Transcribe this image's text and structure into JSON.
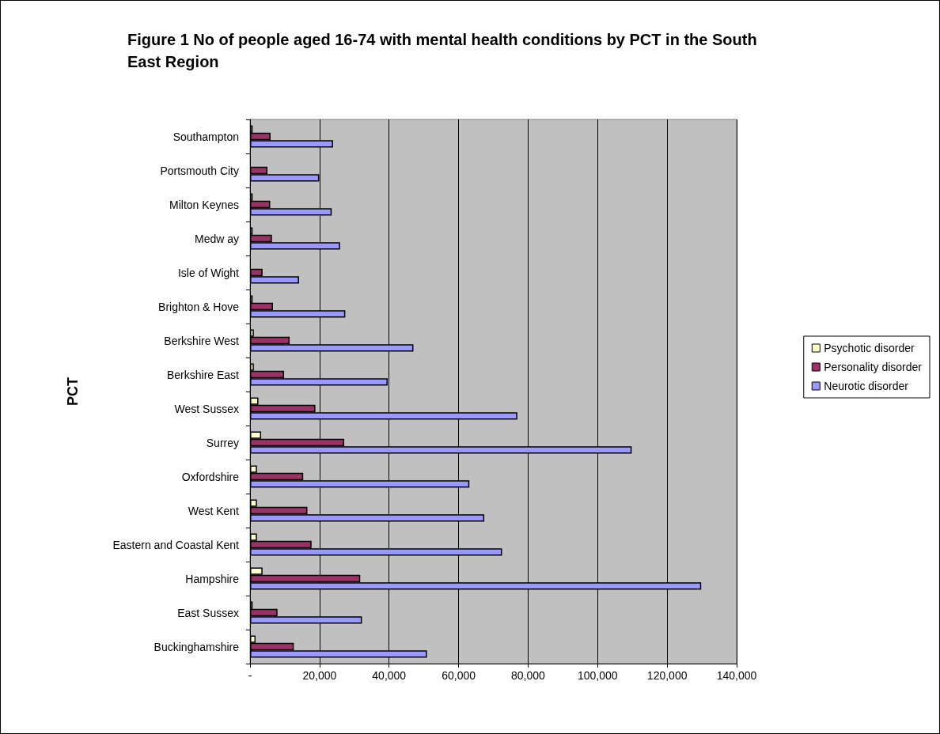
{
  "chart_data": {
    "type": "bar",
    "orientation": "horizontal",
    "title": "Figure 1 No of people aged 16-74 with mental health conditions by PCT in the South East Region",
    "ylabel": "PCT",
    "categories": [
      "Southampton",
      "Portsmouth City",
      "Milton Keynes",
      "Medw ay",
      "Isle of Wight",
      "Brighton & Hove",
      "Berkshire West",
      "Berkshire East",
      "West Sussex",
      "Surrey",
      "Oxfordshire",
      "West Kent",
      "Eastern and Coastal Kent",
      "Hampshire",
      "East Sussex",
      "Buckinghamshire"
    ],
    "series": [
      {
        "name": "Psychotic disorder",
        "color": "#ffffcc",
        "values": [
          750,
          null,
          750,
          750,
          null,
          750,
          1100,
          1100,
          2400,
          3200,
          2000,
          2000,
          2000,
          3600,
          750,
          1600
        ]
      },
      {
        "name": "Personality disorder",
        "color": "#993366",
        "values": [
          5900,
          5000,
          5800,
          6300,
          3600,
          6600,
          11400,
          9800,
          18800,
          27100,
          15300,
          16500,
          17700,
          31700,
          7900,
          12600
        ]
      },
      {
        "name": "Neurotic disorder",
        "color": "#9999ff",
        "values": [
          23900,
          19900,
          23500,
          25900,
          14100,
          27400,
          47000,
          39600,
          76900,
          109800,
          63100,
          67400,
          72500,
          129800,
          32200,
          50900
        ]
      }
    ],
    "xlim": [
      0,
      140000
    ],
    "xticks": [
      {
        "value": 0,
        "label": "-"
      },
      {
        "value": 20000,
        "label": "20,000"
      },
      {
        "value": 40000,
        "label": "40,000"
      },
      {
        "value": 60000,
        "label": "60,000"
      },
      {
        "value": 80000,
        "label": "80,000"
      },
      {
        "value": 100000,
        "label": "100,000"
      },
      {
        "value": 120000,
        "label": "120,000"
      },
      {
        "value": 140000,
        "label": "140,000"
      }
    ],
    "grid": "x",
    "legend": "right"
  }
}
